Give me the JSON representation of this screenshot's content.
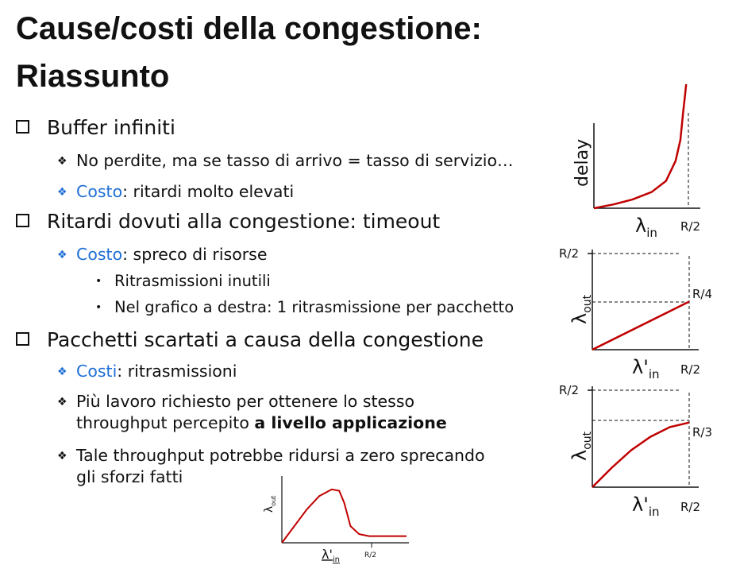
{
  "title": {
    "line1": "Cause/costi della congestione:",
    "line2": "Riassunto"
  },
  "sections": [
    {
      "label": "Buffer infiniti",
      "subs": [
        {
          "text": "No perdite, ma se tasso di arrivo = tasso di servizio…"
        },
        {
          "highlight": "Costo",
          "text": ": ritardi molto elevati"
        }
      ]
    },
    {
      "label": "Ritardi dovuti alla congestione: timeout",
      "subs": [
        {
          "highlight": "Costo",
          "text": ": spreco di risorse",
          "items": [
            "Ritrasmissioni inutili",
            "Nel grafico a destra: 1 ritrasmissione per pacchetto"
          ]
        }
      ]
    },
    {
      "label": "Pacchetti scartati a causa della congestione",
      "subs": [
        {
          "highlight": "Costi",
          "text": ": ritrasmissioni"
        },
        {
          "line1": "Più lavoro richiesto per ottenere lo stesso",
          "line2_plain": "throughput percepito ",
          "line2_bold": "a livello applicazione"
        },
        {
          "line1": "Tale throughput potrebbe ridursi a zero sprecando",
          "line2": "gli sforzi fatti"
        }
      ]
    }
  ],
  "chart_data": [
    {
      "type": "line",
      "name": "delay-vs-lambda-in",
      "ylabel": "delay",
      "xlabel_main": "λ",
      "xlabel_sub": "in",
      "x_ticks": [
        "R/2"
      ],
      "x_domain": [
        0,
        1
      ],
      "y_domain": [
        0,
        1
      ],
      "series": [
        {
          "x": [
            0,
            0.2,
            0.4,
            0.6,
            0.75,
            0.85,
            0.9,
            0.93,
            0.95,
            0.96
          ],
          "y": [
            0,
            0.03,
            0.07,
            0.13,
            0.22,
            0.38,
            0.55,
            0.78,
            0.92,
            1.0
          ]
        }
      ],
      "vline_x": 0.96,
      "color": "#c00000"
    },
    {
      "type": "line",
      "name": "lambda-out-retx",
      "ylabel_main": "λ",
      "ylabel_sub": "out",
      "xlabel_main": "λ'",
      "xlabel_sub": "in",
      "x_ticks": [
        "R/2"
      ],
      "y_ticks": [
        "R/2"
      ],
      "point_label": "R/4",
      "x_domain": [
        0,
        0.5
      ],
      "y_domain": [
        0,
        0.5
      ],
      "series": [
        {
          "x": [
            0,
            0.5
          ],
          "y": [
            0,
            0.25
          ]
        }
      ],
      "color": "#c00000"
    },
    {
      "type": "line",
      "name": "lambda-out-loss",
      "ylabel_main": "λ",
      "ylabel_sub": "out",
      "xlabel_main": "λ'",
      "xlabel_sub": "in",
      "x_ticks": [
        "R/2"
      ],
      "y_ticks": [
        "R/2"
      ],
      "point_label": "R/3",
      "x_domain": [
        0,
        0.5
      ],
      "y_domain": [
        0,
        0.5
      ],
      "series": [
        {
          "x": [
            0,
            0.1,
            0.2,
            0.3,
            0.4,
            0.5
          ],
          "y": [
            0,
            0.1,
            0.19,
            0.26,
            0.31,
            0.333
          ]
        }
      ],
      "color": "#c00000"
    },
    {
      "type": "line",
      "name": "lambda-out-collapse",
      "ylabel_main": "λ",
      "ylabel_sub": "out",
      "xlabel_main": "λ'",
      "xlabel_sub": "in",
      "x_ticks": [
        "R/2"
      ],
      "x_domain": [
        0,
        1
      ],
      "y_domain": [
        0,
        1
      ],
      "series": [
        {
          "x": [
            0,
            0.1,
            0.2,
            0.3,
            0.4,
            0.46,
            0.5,
            0.55,
            0.62,
            0.7,
            0.85,
            1.0
          ],
          "y": [
            0,
            0.25,
            0.5,
            0.7,
            0.8,
            0.78,
            0.6,
            0.25,
            0.13,
            0.1,
            0.1,
            0.1
          ]
        }
      ],
      "color": "#c00000"
    }
  ]
}
